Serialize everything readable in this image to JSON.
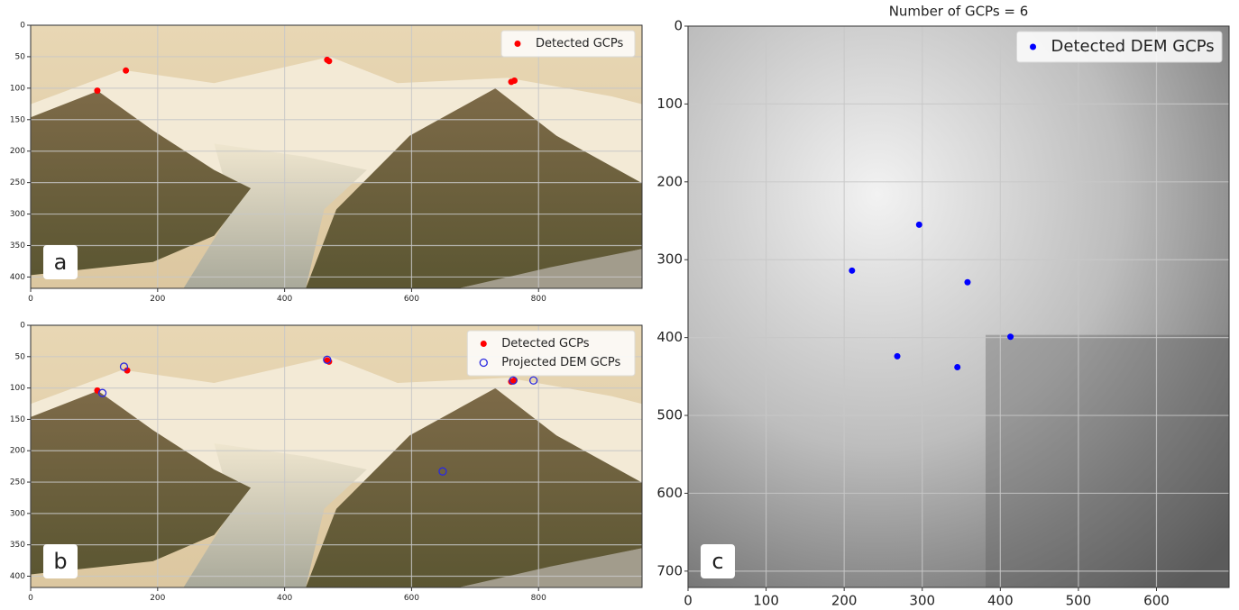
{
  "chart_data": [
    {
      "type": "scatter",
      "annotation": "a",
      "xlim": [
        0,
        963
      ],
      "ylim": [
        418,
        0
      ],
      "xticks": [
        0,
        200,
        400,
        600,
        800
      ],
      "yticks": [
        0,
        50,
        100,
        150,
        200,
        250,
        300,
        350,
        400
      ],
      "grid": true,
      "legend": "upper right",
      "series": [
        {
          "name": "Detected GCPs",
          "color": "#ff0000",
          "marker": "filled",
          "x": [
            105,
            150,
            467,
            470,
            757,
            762
          ],
          "values": [
            104,
            72,
            55,
            57,
            90,
            88
          ]
        }
      ]
    },
    {
      "type": "scatter",
      "annotation": "b",
      "xlim": [
        0,
        963
      ],
      "ylim": [
        418,
        0
      ],
      "xticks": [
        0,
        200,
        400,
        600,
        800
      ],
      "yticks": [
        0,
        50,
        100,
        150,
        200,
        250,
        300,
        350,
        400
      ],
      "grid": true,
      "legend": "upper right",
      "series": [
        {
          "name": "Detected GCPs",
          "color": "#ff0000",
          "marker": "filled",
          "x": [
            105,
            152,
            467,
            470,
            757,
            762
          ],
          "values": [
            104,
            72,
            56,
            58,
            90,
            88
          ]
        },
        {
          "name": "Projected DEM GCPs",
          "color": "#2a2ae0",
          "marker": "open",
          "x": [
            147,
            113,
            467,
            760,
            792,
            649
          ],
          "values": [
            66,
            108,
            55,
            88,
            88,
            233
          ]
        }
      ]
    },
    {
      "type": "scatter",
      "title": "Number of GCPs = 6",
      "annotation": "c",
      "xlim": [
        0,
        693
      ],
      "ylim": [
        721,
        0
      ],
      "xticks": [
        0,
        100,
        200,
        300,
        400,
        500,
        600
      ],
      "yticks": [
        0,
        100,
        200,
        300,
        400,
        500,
        600,
        700
      ],
      "grid": true,
      "legend": "upper right",
      "series": [
        {
          "name": "Detected DEM GCPs",
          "color": "#0000ff",
          "marker": "filled",
          "x": [
            296,
            210,
            358,
            413,
            268,
            345
          ],
          "values": [
            255,
            314,
            329,
            399,
            424,
            438
          ]
        }
      ]
    }
  ]
}
